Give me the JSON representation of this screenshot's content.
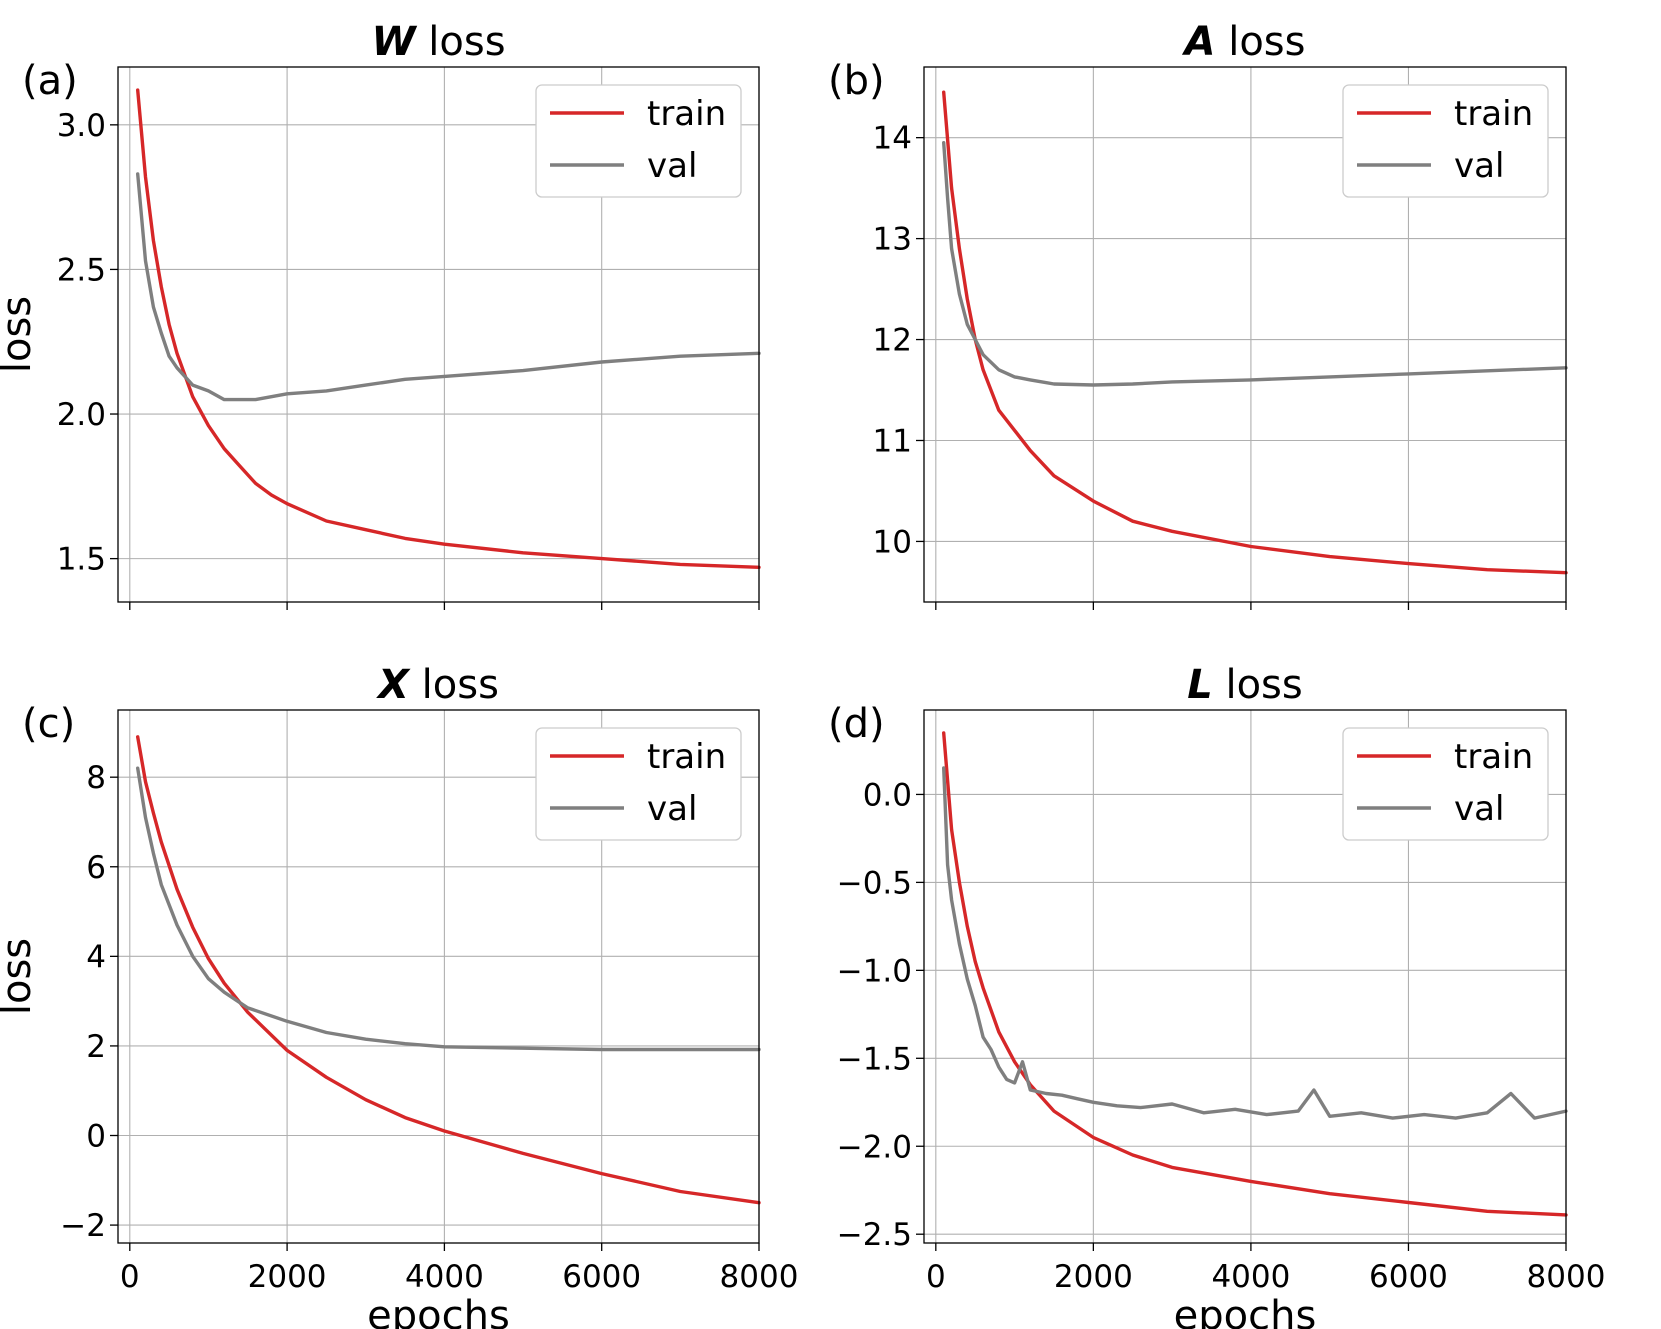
{
  "figure": {
    "series_names": [
      "train",
      "val"
    ],
    "colors": {
      "train": "#d62728",
      "val": "#7f7f7f"
    },
    "legend_position": "top-right"
  },
  "chart_data": [
    {
      "id": "a",
      "type": "line",
      "tag": "(a)",
      "title_symbol": "W",
      "title_text": "loss",
      "xlabel": "",
      "ylabel": "loss",
      "xlim": [
        -150,
        8000
      ],
      "ylim": [
        1.35,
        3.2
      ],
      "xticks": [
        0,
        2000,
        4000,
        6000,
        8000
      ],
      "xtick_labels": [],
      "yticks": [
        1.5,
        2.0,
        2.5,
        3.0
      ],
      "ytick_labels": [
        "1.5",
        "2.0",
        "2.5",
        "3.0"
      ],
      "grid": true,
      "series": [
        {
          "name": "train",
          "x": [
            100,
            200,
            300,
            400,
            500,
            600,
            800,
            1000,
            1200,
            1400,
            1600,
            1800,
            2000,
            2500,
            3000,
            3500,
            4000,
            5000,
            6000,
            7000,
            8000
          ],
          "values": [
            3.12,
            2.82,
            2.6,
            2.44,
            2.31,
            2.21,
            2.06,
            1.96,
            1.88,
            1.82,
            1.76,
            1.72,
            1.69,
            1.63,
            1.6,
            1.57,
            1.55,
            1.52,
            1.5,
            1.48,
            1.47
          ]
        },
        {
          "name": "val",
          "x": [
            100,
            200,
            300,
            400,
            500,
            600,
            800,
            1000,
            1200,
            1400,
            1600,
            1800,
            2000,
            2500,
            3000,
            3500,
            4000,
            5000,
            6000,
            7000,
            8000
          ],
          "values": [
            2.83,
            2.53,
            2.37,
            2.28,
            2.2,
            2.16,
            2.1,
            2.08,
            2.05,
            2.05,
            2.05,
            2.06,
            2.07,
            2.08,
            2.1,
            2.12,
            2.13,
            2.15,
            2.18,
            2.2,
            2.21
          ]
        }
      ]
    },
    {
      "id": "b",
      "type": "line",
      "tag": "(b)",
      "title_symbol": "A",
      "title_text": "loss",
      "xlabel": "",
      "ylabel": "",
      "xlim": [
        -150,
        8000
      ],
      "ylim": [
        9.4,
        14.7
      ],
      "xticks": [
        0,
        2000,
        4000,
        6000,
        8000
      ],
      "xtick_labels": [],
      "yticks": [
        10,
        11,
        12,
        13,
        14
      ],
      "ytick_labels": [
        "10",
        "11",
        "12",
        "13",
        "14"
      ],
      "grid": true,
      "series": [
        {
          "name": "train",
          "x": [
            100,
            200,
            300,
            400,
            500,
            600,
            800,
            1000,
            1200,
            1500,
            2000,
            2500,
            3000,
            4000,
            5000,
            6000,
            7000,
            8000
          ],
          "values": [
            14.45,
            13.5,
            12.9,
            12.4,
            12.0,
            11.7,
            11.3,
            11.1,
            10.9,
            10.65,
            10.4,
            10.2,
            10.1,
            9.95,
            9.85,
            9.78,
            9.72,
            9.69
          ]
        },
        {
          "name": "val",
          "x": [
            100,
            150,
            200,
            300,
            400,
            500,
            600,
            800,
            1000,
            1200,
            1500,
            2000,
            2500,
            3000,
            4000,
            5000,
            6000,
            7000,
            8000
          ],
          "values": [
            13.95,
            13.4,
            12.9,
            12.45,
            12.15,
            12.0,
            11.85,
            11.7,
            11.63,
            11.6,
            11.56,
            11.55,
            11.56,
            11.58,
            11.6,
            11.63,
            11.66,
            11.69,
            11.72
          ]
        }
      ]
    },
    {
      "id": "c",
      "type": "line",
      "tag": "(c)",
      "title_symbol": "X",
      "title_text": "loss",
      "xlabel": "epochs",
      "ylabel": "loss",
      "xlim": [
        -150,
        8000
      ],
      "ylim": [
        -2.4,
        9.5
      ],
      "xticks": [
        0,
        2000,
        4000,
        6000,
        8000
      ],
      "xtick_labels": [
        "0",
        "2000",
        "4000",
        "6000",
        "8000"
      ],
      "yticks": [
        -2,
        0,
        2,
        4,
        6,
        8
      ],
      "ytick_labels": [
        "−2",
        "0",
        "2",
        "4",
        "6",
        "8"
      ],
      "grid": true,
      "series": [
        {
          "name": "train",
          "x": [
            100,
            200,
            300,
            400,
            600,
            800,
            1000,
            1200,
            1500,
            2000,
            2500,
            3000,
            3500,
            4000,
            5000,
            6000,
            7000,
            8000
          ],
          "values": [
            8.9,
            7.9,
            7.2,
            6.55,
            5.5,
            4.65,
            3.95,
            3.4,
            2.75,
            1.9,
            1.3,
            0.8,
            0.4,
            0.1,
            -0.4,
            -0.85,
            -1.25,
            -1.5
          ]
        },
        {
          "name": "val",
          "x": [
            100,
            200,
            300,
            400,
            600,
            800,
            1000,
            1200,
            1500,
            2000,
            2500,
            3000,
            3500,
            4000,
            5000,
            6000,
            7000,
            8000
          ],
          "values": [
            8.2,
            7.1,
            6.3,
            5.6,
            4.7,
            4.0,
            3.5,
            3.2,
            2.85,
            2.55,
            2.3,
            2.15,
            2.05,
            1.98,
            1.95,
            1.92,
            1.92,
            1.92
          ]
        }
      ]
    },
    {
      "id": "d",
      "type": "line",
      "tag": "(d)",
      "title_symbol": "L",
      "title_text": "loss",
      "xlabel": "epochs",
      "ylabel": "",
      "xlim": [
        -150,
        8000
      ],
      "ylim": [
        -2.55,
        0.48
      ],
      "xticks": [
        0,
        2000,
        4000,
        6000,
        8000
      ],
      "xtick_labels": [
        "0",
        "2000",
        "4000",
        "6000",
        "8000"
      ],
      "yticks": [
        -2.5,
        -2.0,
        -1.5,
        -1.0,
        -0.5,
        0.0
      ],
      "ytick_labels": [
        "−2.5",
        "−2.0",
        "−1.5",
        "−1.0",
        "−0.5",
        "0.0"
      ],
      "grid": true,
      "series": [
        {
          "name": "train",
          "x": [
            100,
            200,
            300,
            400,
            500,
            600,
            800,
            1000,
            1200,
            1500,
            2000,
            2500,
            3000,
            4000,
            5000,
            6000,
            7000,
            8000
          ],
          "values": [
            0.35,
            -0.2,
            -0.5,
            -0.75,
            -0.95,
            -1.1,
            -1.35,
            -1.52,
            -1.65,
            -1.8,
            -1.95,
            -2.05,
            -2.12,
            -2.2,
            -2.27,
            -2.32,
            -2.37,
            -2.39
          ]
        },
        {
          "name": "val",
          "x": [
            100,
            150,
            200,
            300,
            400,
            500,
            600,
            700,
            800,
            900,
            1000,
            1100,
            1200,
            1400,
            1600,
            1800,
            2000,
            2300,
            2600,
            3000,
            3400,
            3800,
            4200,
            4600,
            4800,
            5000,
            5400,
            5800,
            6200,
            6600,
            7000,
            7300,
            7600,
            8000
          ],
          "values": [
            0.15,
            -0.4,
            -0.6,
            -0.85,
            -1.05,
            -1.2,
            -1.38,
            -1.45,
            -1.55,
            -1.62,
            -1.64,
            -1.52,
            -1.68,
            -1.7,
            -1.71,
            -1.73,
            -1.75,
            -1.77,
            -1.78,
            -1.76,
            -1.81,
            -1.79,
            -1.82,
            -1.8,
            -1.68,
            -1.83,
            -1.81,
            -1.84,
            -1.82,
            -1.84,
            -1.81,
            -1.7,
            -1.84,
            -1.8
          ]
        }
      ]
    }
  ]
}
